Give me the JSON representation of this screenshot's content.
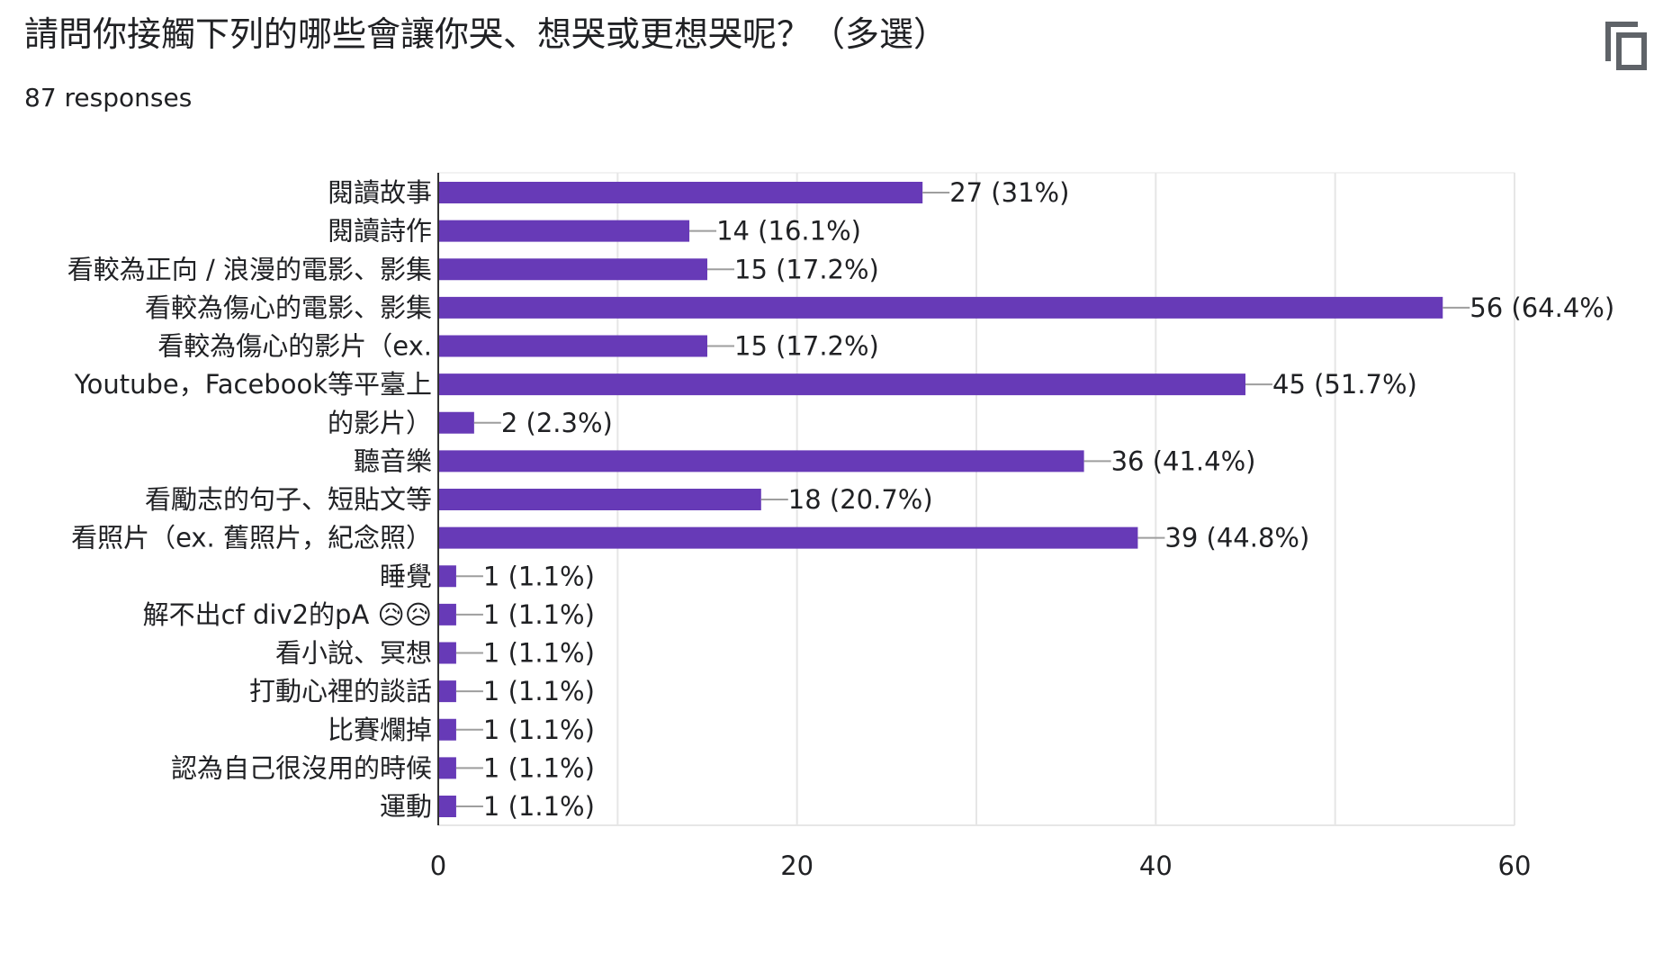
{
  "header": {
    "title": "請問你接觸下列的哪些會讓你哭、想哭或更想哭呢？（多選）",
    "responses": "87 responses",
    "copy_icon": "copy-icon"
  },
  "colors": {
    "bar": "#673ab7",
    "grid": "#e6e6e6",
    "axis": "#333333",
    "text": "#202124",
    "leader": "#9e9e9e"
  },
  "chart_data": {
    "type": "bar",
    "orientation": "horizontal",
    "categories": [
      "閱讀故事",
      "閱讀詩作",
      "看較為正向 / 浪漫的電影、影集",
      "看較為傷心的電影、影集",
      "看較為傷心的影片（ex.",
      "Youtube，Facebook等平臺上",
      "的影片）",
      "聽音樂",
      "看勵志的句子、短貼文等",
      "看照片（ex. 舊照片，紀念照）",
      "睡覺",
      "解不出cf div2的pA 😥😥",
      "看小說、冥想",
      "打動心裡的談話",
      "比賽爛掉",
      "認為自己很沒用的時候",
      "運動"
    ],
    "values": [
      27,
      14,
      15,
      56,
      15,
      45,
      2,
      36,
      18,
      39,
      1,
      1,
      1,
      1,
      1,
      1,
      1
    ],
    "data_labels": [
      "27 (31%)",
      "14 (16.1%)",
      "15 (17.2%)",
      "56 (64.4%)",
      "15 (17.2%)",
      "45 (51.7%)",
      "2 (2.3%)",
      "36 (41.4%)",
      "18 (20.7%)",
      "39 (44.8%)",
      "1 (1.1%)",
      "1 (1.1%)",
      "1 (1.1%)",
      "1 (1.1%)",
      "1 (1.1%)",
      "1 (1.1%)",
      "1 (1.1%)"
    ],
    "xlim": [
      0,
      60
    ],
    "x_ticks": [
      0,
      20,
      40,
      60
    ],
    "x_tick_labels": [
      "0",
      "20",
      "40",
      "60"
    ],
    "grid": true,
    "legend": false
  }
}
